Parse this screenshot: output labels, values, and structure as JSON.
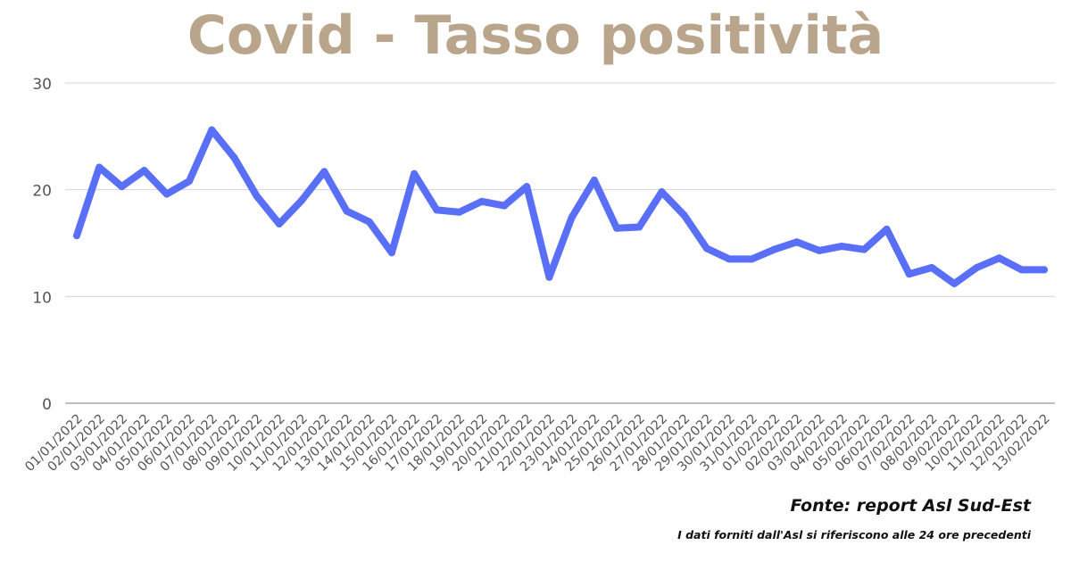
{
  "colors": {
    "title": "#b8a58b",
    "line": "#5a6ff7",
    "grid": "#d4d4d4",
    "axis": "#999999",
    "tick_text": "#555555",
    "footer_text": "#111111"
  },
  "chart_data": {
    "type": "line",
    "title": "Covid - Tasso positività",
    "xlabel": "",
    "ylabel": "",
    "ylim": [
      0,
      30
    ],
    "yticks": [
      "0",
      "10",
      "20",
      "30"
    ],
    "grid": true,
    "legend": "none",
    "categories": [
      "01/01/2022",
      "02/01/2022",
      "03/01/2022",
      "04/01/2022",
      "05/01/2022",
      "06/01/2022",
      "07/01/2022",
      "08/01/2022",
      "09/01/2022",
      "10/01/2022",
      "11/01/2022",
      "12/01/2022",
      "13/01/2022",
      "14/01/2022",
      "15/01/2022",
      "16/01/2022",
      "17/01/2022",
      "18/01/2022",
      "19/01/2022",
      "20/01/2022",
      "21/01/2022",
      "22/01/2022",
      "23/01/2022",
      "24/01/2022",
      "25/01/2022",
      "26/01/2022",
      "27/01/2022",
      "28/01/2022",
      "29/01/2022",
      "30/01/2022",
      "31/01/2022",
      "01/02/2022",
      "02/02/2022",
      "03/02/2022",
      "04/02/2022",
      "05/02/2022",
      "06/02/2022",
      "07/02/2022",
      "08/02/2022",
      "09/02/2022",
      "10/02/2022",
      "11/02/2022",
      "12/02/2022",
      "13/02/2022"
    ],
    "values": [
      15.7,
      22.1,
      20.3,
      21.8,
      19.6,
      20.8,
      25.6,
      23.0,
      19.4,
      16.8,
      19.0,
      21.7,
      18.0,
      17.0,
      14.1,
      21.5,
      18.1,
      17.9,
      18.9,
      18.5,
      20.3,
      11.8,
      17.4,
      20.9,
      16.4,
      16.5,
      19.8,
      17.6,
      14.5,
      13.5,
      13.5,
      14.4,
      15.1,
      14.3,
      14.7,
      14.4,
      16.3,
      12.1,
      12.7,
      11.2,
      12.7,
      13.6,
      12.5,
      12.5
    ]
  },
  "footer": {
    "source": "Fonte: report Asl Sud-Est",
    "note": "I dati forniti dall'Asl si riferiscono alle 24 ore precedenti"
  }
}
